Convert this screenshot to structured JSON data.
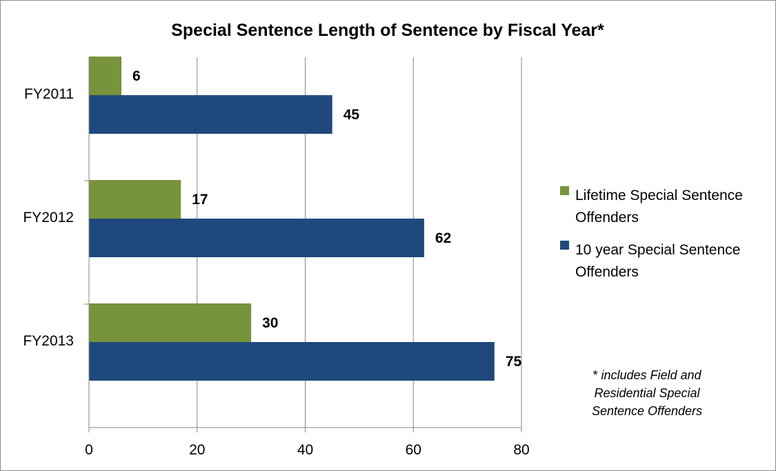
{
  "chart_data": {
    "type": "bar",
    "orientation": "horizontal",
    "title": "Special Sentence Length of Sentence by Fiscal Year*",
    "categories": [
      "FY2011",
      "FY2012",
      "FY2013"
    ],
    "series": [
      {
        "name": "Lifetime Special Sentence Offenders",
        "values": [
          6,
          17,
          30
        ],
        "color": "#77933c"
      },
      {
        "name": "10 year Special Sentence Offenders",
        "values": [
          45,
          62,
          75
        ],
        "color": "#1f497d"
      }
    ],
    "xlim": [
      0,
      80
    ],
    "x_ticks": [
      "0",
      "20",
      "40",
      "60",
      "80"
    ],
    "grid": "vertical",
    "legend_position": "right",
    "legend_lines": [
      [
        "Lifetime Special Sentence",
        "Offenders"
      ],
      [
        "10 year Special Sentence",
        "Offenders"
      ]
    ],
    "annotation": {
      "star": "*",
      "lines": [
        "includes Field and",
        "Residential Special",
        "Sentence Offenders"
      ]
    }
  }
}
